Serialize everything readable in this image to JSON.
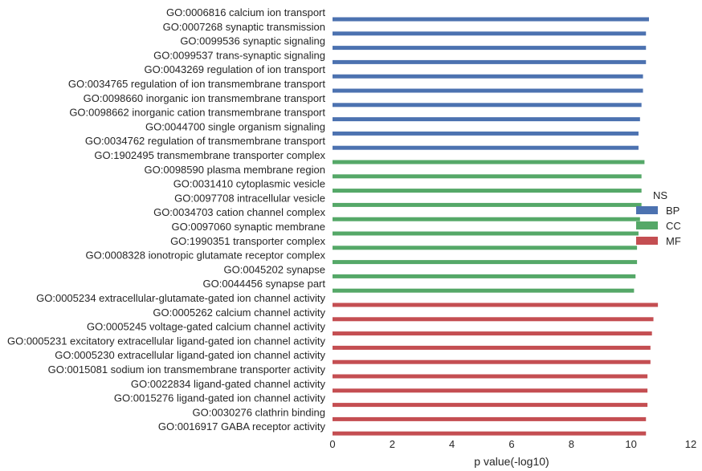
{
  "chart_data": {
    "type": "bar",
    "orientation": "horizontal",
    "xlabel": "p value(-log10)",
    "xlim": [
      0,
      12
    ],
    "xticks": [
      0,
      2,
      4,
      6,
      8,
      10,
      12
    ],
    "grid": false,
    "legend": {
      "title": "NS",
      "placement": "right",
      "entries": [
        {
          "name": "BP",
          "color": "#4c72b0"
        },
        {
          "name": "CC",
          "color": "#55a868"
        },
        {
          "name": "MF",
          "color": "#c44e52"
        }
      ]
    },
    "categories": [
      "GO:0006816 calcium ion transport",
      "GO:0007268 synaptic transmission",
      "GO:0099536 synaptic signaling",
      "GO:0099537 trans-synaptic signaling",
      "GO:0043269 regulation of ion transport",
      "GO:0034765 regulation of ion transmembrane transport",
      "GO:0098660 inorganic ion transmembrane transport",
      "GO:0098662 inorganic cation transmembrane transport",
      "GO:0044700 single organism signaling",
      "GO:0034762 regulation of transmembrane transport",
      "GO:1902495 transmembrane transporter complex",
      "GO:0098590 plasma membrane region",
      "GO:0031410 cytoplasmic vesicle",
      "GO:0097708 intracellular vesicle",
      "GO:0034703 cation channel complex",
      "GO:0097060 synaptic membrane",
      "GO:1990351 transporter complex",
      "GO:0008328 ionotropic glutamate receptor complex",
      "GO:0045202 synapse",
      "GO:0044456 synapse part",
      "GO:0005234 extracellular-glutamate-gated ion channel activity",
      "GO:0005262 calcium channel activity",
      "GO:0005245 voltage-gated calcium channel activity",
      "GO:0005231 excitatory extracellular ligand-gated ion channel activity",
      "GO:0005230 extracellular ligand-gated ion channel activity",
      "GO:0015081 sodium ion transmembrane transporter activity",
      "GO:0022834 ligand-gated channel activity",
      "GO:0015276 ligand-gated ion channel activity",
      "GO:0030276 clathrin binding",
      "GO:0016917 GABA receptor activity"
    ],
    "values": [
      10.6,
      10.5,
      10.5,
      10.5,
      10.4,
      10.4,
      10.35,
      10.3,
      10.25,
      10.25,
      10.45,
      10.35,
      10.35,
      10.35,
      10.3,
      10.25,
      10.2,
      10.2,
      10.15,
      10.1,
      10.9,
      10.75,
      10.7,
      10.65,
      10.65,
      10.55,
      10.55,
      10.55,
      10.5,
      10.5
    ],
    "groups": [
      "BP",
      "BP",
      "BP",
      "BP",
      "BP",
      "BP",
      "BP",
      "BP",
      "BP",
      "BP",
      "CC",
      "CC",
      "CC",
      "CC",
      "CC",
      "CC",
      "CC",
      "CC",
      "CC",
      "CC",
      "MF",
      "MF",
      "MF",
      "MF",
      "MF",
      "MF",
      "MF",
      "MF",
      "MF",
      "MF"
    ]
  }
}
